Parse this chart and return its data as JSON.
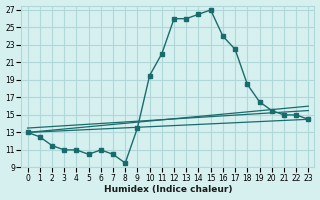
{
  "title": "",
  "xlabel": "Humidex (Indice chaleur)",
  "ylabel": "",
  "background_color": "#d6f0f0",
  "grid_color": "#b0d8d8",
  "line_color": "#1a6b6b",
  "x_ticks": [
    0,
    1,
    2,
    3,
    4,
    5,
    6,
    7,
    8,
    9,
    10,
    11,
    12,
    13,
    14,
    15,
    16,
    17,
    18,
    19,
    20,
    21,
    22,
    23
  ],
  "y_ticks": [
    9,
    11,
    13,
    15,
    17,
    19,
    21,
    23,
    25,
    27
  ],
  "xlim": [
    -0.5,
    23.5
  ],
  "ylim": [
    9,
    27.5
  ],
  "series": [
    {
      "x": [
        0,
        1,
        2,
        3,
        4,
        5,
        6,
        7,
        8,
        9,
        10,
        11,
        12,
        13,
        14,
        15,
        16,
        17,
        18,
        19,
        20,
        21,
        22,
        23
      ],
      "y": [
        13,
        12.5,
        11.5,
        11,
        11,
        10.5,
        11,
        10.5,
        9.5,
        13.5,
        19.5,
        22,
        26,
        26,
        26.5,
        27,
        24,
        22.5,
        18.5,
        16.5,
        15.5,
        15,
        15,
        14.5
      ],
      "has_markers": true
    },
    {
      "x": [
        0,
        23
      ],
      "y": [
        13,
        16
      ],
      "has_markers": false
    },
    {
      "x": [
        0,
        23
      ],
      "y": [
        13.5,
        15.5
      ],
      "has_markers": false
    },
    {
      "x": [
        0,
        23
      ],
      "y": [
        13,
        14.5
      ],
      "has_markers": false
    }
  ]
}
